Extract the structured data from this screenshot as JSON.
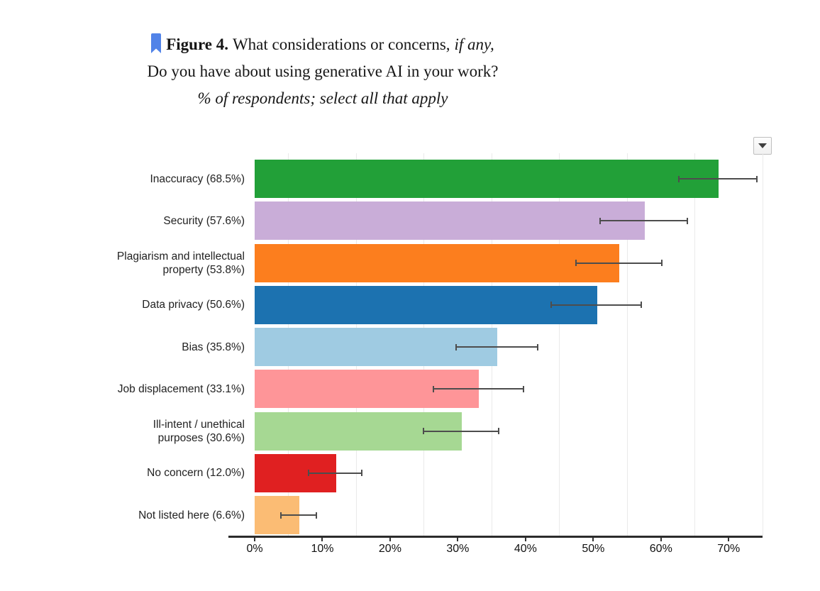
{
  "figure": {
    "tag": "Figure 4.",
    "question_part1": "What considerations or concerns,",
    "question_italic": "if any,",
    "question_line2": "Do you have about using generative AI in your work?",
    "subtitle": "% of respondents; select all that apply",
    "bookmark_color": "#5183E8"
  },
  "controls": {
    "collapse_button_icon": "chevron-down"
  },
  "chart_data": {
    "type": "bar",
    "orientation": "horizontal",
    "title": "Figure 4. What considerations or concerns, if any, Do you have about using generative AI in your work?",
    "subtitle": "% of respondents; select all that apply",
    "value_unit": "%",
    "categories": [
      "Inaccuracy",
      "Security",
      "Plagiarism and intellectual property",
      "Data privacy",
      "Bias",
      "Job displacement",
      "Ill-intent / unethical purposes",
      "No concern",
      "Not listed here"
    ],
    "display_labels": [
      "Inaccuracy (68.5%)",
      "Security (57.6%)",
      "Plagiarism and intellectual\nproperty (53.8%)",
      "Data privacy (50.6%)",
      "Bias (35.8%)",
      "Job displacement (33.1%)",
      "Ill-intent / unethical\npurposes (30.6%)",
      "No concern (12.0%)",
      "Not listed here (6.6%)"
    ],
    "values": [
      68.5,
      57.6,
      53.8,
      50.6,
      35.8,
      33.1,
      30.6,
      12.0,
      6.6
    ],
    "error_low": [
      62.6,
      51.0,
      47.5,
      43.8,
      29.7,
      26.4,
      24.9,
      8.0,
      3.9
    ],
    "error_high": [
      74.2,
      63.9,
      60.1,
      57.1,
      41.8,
      39.7,
      36.0,
      15.8,
      9.1
    ],
    "bar_colors": [
      "#22A038",
      "#C9ADD8",
      "#FC7E1E",
      "#1C72B0",
      "#9FCBE2",
      "#FE9598",
      "#A6D893",
      "#E02021",
      "#FBBC74"
    ],
    "x_tick_labels": [
      "0%",
      "10%",
      "20%",
      "30%",
      "40%",
      "50%",
      "60%",
      "70%"
    ],
    "x_tick_values": [
      0,
      10,
      20,
      30,
      40,
      50,
      60,
      70
    ],
    "gridline_values": [
      5,
      15,
      25,
      35,
      45,
      55,
      65,
      75
    ],
    "x_range": [
      0,
      75
    ],
    "grid_color": "#EAEAEA",
    "error_bar_color": "#4D4D4D",
    "axis_color": "#2B2B2B",
    "legend": "none"
  }
}
